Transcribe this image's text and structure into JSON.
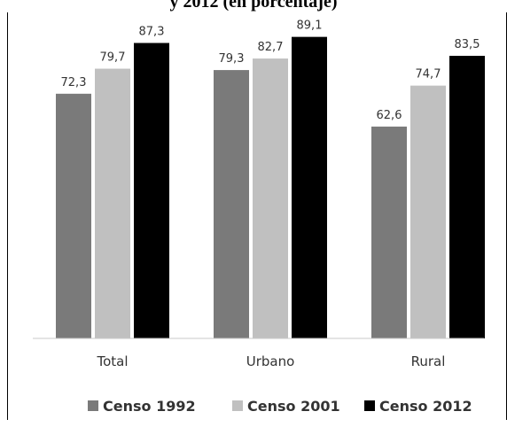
{
  "chart_data": {
    "type": "bar",
    "title": "y 2012 (en porcentaje)",
    "categories": [
      "Total",
      "Urbano",
      "Rural"
    ],
    "series": [
      {
        "name": "Censo 1992",
        "values": [
          72.3,
          79.3,
          62.6
        ],
        "labels": [
          "72,3",
          "79,3",
          "62,6"
        ],
        "color": "#7a7a7a"
      },
      {
        "name": "Censo 2001",
        "values": [
          79.7,
          82.7,
          74.7
        ],
        "labels": [
          "79,7",
          "82,7",
          "74,7"
        ],
        "color": "#c0c0c0"
      },
      {
        "name": "Censo 2012",
        "values": [
          87.3,
          89.1,
          83.5
        ],
        "labels": [
          "87,3",
          "89,1",
          "83,5"
        ],
        "color": "#000000"
      }
    ],
    "ylim": [
      0,
      100
    ],
    "grid": false,
    "legend": "bottom"
  }
}
